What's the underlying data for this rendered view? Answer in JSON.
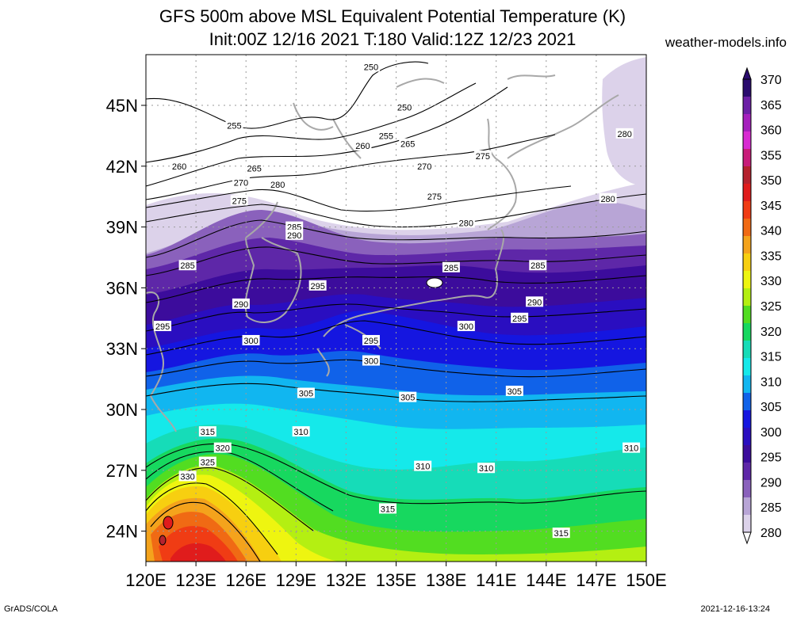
{
  "header": {
    "title_line1": "GFS 500m above MSL Equivalent Potential Temperature (K)",
    "title_line2": "Init:00Z 12/16 2021 T:180 Valid:12Z 12/23 2021",
    "site": "weather-models.info"
  },
  "footer": {
    "left": "GrADS/COLA",
    "right": "2021-12-16-13:24"
  },
  "map": {
    "lat_labels": [
      "45N",
      "42N",
      "39N",
      "36N",
      "33N",
      "30N",
      "27N",
      "24N"
    ],
    "lon_labels": [
      "120E",
      "123E",
      "126E",
      "129E",
      "132E",
      "135E",
      "138E",
      "141E",
      "144E",
      "147E",
      "150E"
    ],
    "lat_values": [
      45,
      42,
      39,
      36,
      33,
      30,
      27,
      24
    ],
    "lon_values": [
      120,
      123,
      126,
      129,
      132,
      135,
      138,
      141,
      144,
      147,
      150
    ],
    "lat_range": [
      22.5,
      47.5
    ],
    "lon_range": [
      120,
      150
    ],
    "contour_labels": [
      {
        "text": "250",
        "lon": 133.5,
        "lat": 46.9
      },
      {
        "text": "250",
        "lon": 135.5,
        "lat": 44.9
      },
      {
        "text": "255",
        "lon": 125.3,
        "lat": 44.0
      },
      {
        "text": "255",
        "lon": 134.4,
        "lat": 43.5
      },
      {
        "text": "260",
        "lon": 133.0,
        "lat": 43.0
      },
      {
        "text": "265",
        "lon": 135.7,
        "lat": 43.1
      },
      {
        "text": "260",
        "lon": 122.0,
        "lat": 42.0
      },
      {
        "text": "265",
        "lon": 126.5,
        "lat": 41.9
      },
      {
        "text": "270",
        "lon": 136.7,
        "lat": 42.0
      },
      {
        "text": "275",
        "lon": 140.2,
        "lat": 42.5
      },
      {
        "text": "280",
        "lon": 148.7,
        "lat": 43.6
      },
      {
        "text": "270",
        "lon": 125.7,
        "lat": 41.2
      },
      {
        "text": "280",
        "lon": 127.9,
        "lat": 41.1
      },
      {
        "text": "275",
        "lon": 125.6,
        "lat": 40.3
      },
      {
        "text": "275",
        "lon": 137.3,
        "lat": 40.5
      },
      {
        "text": "280",
        "lon": 147.7,
        "lat": 40.4
      },
      {
        "text": "280",
        "lon": 139.2,
        "lat": 39.2
      },
      {
        "text": "285",
        "lon": 128.9,
        "lat": 39.0
      },
      {
        "text": "290",
        "lon": 128.9,
        "lat": 38.6
      },
      {
        "text": "285",
        "lon": 122.5,
        "lat": 37.1
      },
      {
        "text": "285",
        "lon": 138.3,
        "lat": 37.0
      },
      {
        "text": "285",
        "lon": 143.5,
        "lat": 37.1
      },
      {
        "text": "295",
        "lon": 130.3,
        "lat": 36.1
      },
      {
        "text": "290",
        "lon": 125.7,
        "lat": 35.2
      },
      {
        "text": "290",
        "lon": 143.3,
        "lat": 35.3
      },
      {
        "text": "295",
        "lon": 142.4,
        "lat": 34.5
      },
      {
        "text": "295",
        "lon": 121.0,
        "lat": 34.1
      },
      {
        "text": "300",
        "lon": 139.2,
        "lat": 34.1
      },
      {
        "text": "300",
        "lon": 126.3,
        "lat": 33.4
      },
      {
        "text": "295",
        "lon": 133.5,
        "lat": 33.4
      },
      {
        "text": "300",
        "lon": 133.5,
        "lat": 32.4
      },
      {
        "text": "305",
        "lon": 129.6,
        "lat": 30.8
      },
      {
        "text": "305",
        "lon": 135.7,
        "lat": 30.6
      },
      {
        "text": "305",
        "lon": 142.1,
        "lat": 30.9
      },
      {
        "text": "315",
        "lon": 123.7,
        "lat": 28.9
      },
      {
        "text": "310",
        "lon": 129.3,
        "lat": 28.9
      },
      {
        "text": "320",
        "lon": 124.6,
        "lat": 28.1
      },
      {
        "text": "310",
        "lon": 149.1,
        "lat": 28.1
      },
      {
        "text": "325",
        "lon": 123.7,
        "lat": 27.4
      },
      {
        "text": "310",
        "lon": 136.6,
        "lat": 27.2
      },
      {
        "text": "310",
        "lon": 140.4,
        "lat": 27.1
      },
      {
        "text": "330",
        "lon": 122.5,
        "lat": 26.7
      },
      {
        "text": "315",
        "lon": 134.5,
        "lat": 25.1
      },
      {
        "text": "315",
        "lon": 144.9,
        "lat": 23.9
      }
    ]
  },
  "colorbar": {
    "labels": [
      "370",
      "365",
      "360",
      "355",
      "350",
      "345",
      "340",
      "335",
      "330",
      "325",
      "320",
      "315",
      "310",
      "305",
      "300",
      "295",
      "290",
      "285",
      "280"
    ],
    "colors": [
      "#2a0b6e",
      "#6c1fa6",
      "#a51fbd",
      "#d82ad2",
      "#c81c7a",
      "#b5222e",
      "#e01c1c",
      "#f03c14",
      "#f06a14",
      "#f4a31c",
      "#f7cf10",
      "#eef510",
      "#b4ef12",
      "#52dd21",
      "#17d85f",
      "#16dcb8",
      "#15e9ea",
      "#11b6f0",
      "#1062e9",
      "#1516e0",
      "#2a0ec0",
      "#3c0c9c",
      "#5e27a8",
      "#8a61bc",
      "#b8a5d6",
      "#dcd2ea"
    ]
  }
}
